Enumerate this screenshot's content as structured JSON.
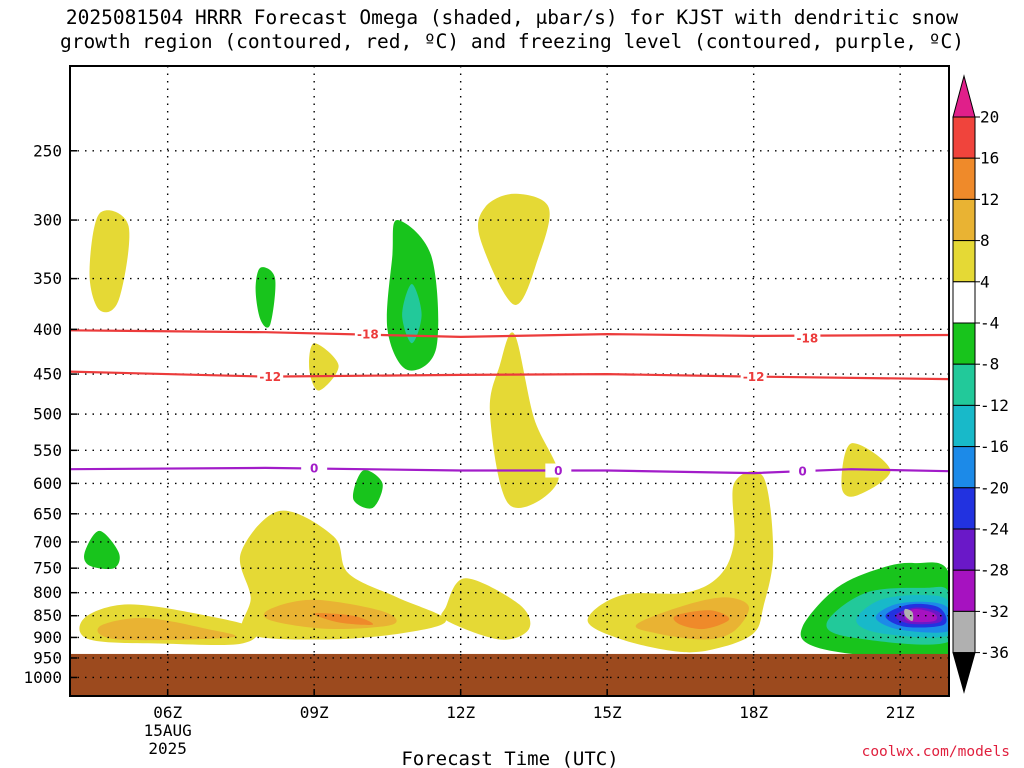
{
  "chart_data": {
    "type": "time-height contour",
    "title_line1": "2025081504 HRRR Forecast Omega (shaded, μbar/s) for KJST with dendritic snow",
    "title_line2": "growth region (contoured, red, ºC) and freezing level (contoured, purple, ºC)",
    "xlabel": "Forecast Time (UTC)",
    "x_ticks": [
      "06Z",
      "09Z",
      "12Z",
      "15Z",
      "18Z",
      "21Z"
    ],
    "x_tick_hours": [
      6,
      9,
      12,
      15,
      18,
      21
    ],
    "x_date_label": [
      "15AUG",
      "2025"
    ],
    "xlim_hours": [
      4,
      22
    ],
    "ylabel": "",
    "y_ticks": [
      250,
      300,
      350,
      400,
      450,
      500,
      550,
      600,
      650,
      700,
      750,
      800,
      850,
      900,
      950,
      1000
    ],
    "ylim_hpa": [
      1050,
      200
    ],
    "y_scale": "log-pressure",
    "ground_pressure_hpa": 940,
    "colorbar_levels": [
      20,
      16,
      12,
      8,
      4,
      -4,
      -8,
      -12,
      -16,
      -20,
      -24,
      -28,
      -32,
      -36
    ],
    "colorbar_colors": [
      "#e01f8a",
      "#f0443c",
      "#ef8a2a",
      "#e9b333",
      "#e5d935",
      "#ffffff",
      "#18c41c",
      "#22c99a",
      "#18b9c9",
      "#1c8ae8",
      "#2232e0",
      "#6a18c8",
      "#a612c0",
      "#b0b0b0",
      "#000000"
    ],
    "contours": [
      {
        "label": "-18",
        "color": "#ec3b3b",
        "points": [
          [
            4,
            401
          ],
          [
            8,
            403
          ],
          [
            12,
            408
          ],
          [
            15,
            405
          ],
          [
            18,
            407
          ],
          [
            22,
            406
          ]
        ]
      },
      {
        "label": "-12",
        "color": "#ec3b3b",
        "points": [
          [
            4,
            447
          ],
          [
            8,
            453
          ],
          [
            12,
            451
          ],
          [
            15,
            450
          ],
          [
            18,
            453
          ],
          [
            22,
            456
          ]
        ]
      },
      {
        "label": "0",
        "color": "#a21cc9",
        "points": [
          [
            4,
            578
          ],
          [
            8,
            576
          ],
          [
            12,
            580
          ],
          [
            15,
            580
          ],
          [
            18,
            584
          ],
          [
            20,
            578
          ],
          [
            22,
            581
          ]
        ]
      }
    ],
    "contour_label_positions": [
      {
        "label": "-18",
        "hour": 10.1,
        "hpa": 405
      },
      {
        "label": "-18",
        "hour": 19.1,
        "hpa": 409
      },
      {
        "label": "-12",
        "hour": 8.1,
        "hpa": 453
      },
      {
        "label": "-12",
        "hour": 18.0,
        "hpa": 453
      },
      {
        "label": "0",
        "hour": 9.0,
        "hpa": 576
      },
      {
        "label": "0",
        "hour": 14.0,
        "hpa": 580
      },
      {
        "label": "0",
        "hour": 19.0,
        "hpa": 581
      }
    ],
    "omega_regions": [
      {
        "level": 4,
        "points": [
          [
            4.6,
            295
          ],
          [
            5.2,
            305
          ],
          [
            5.0,
            370
          ],
          [
            4.6,
            380
          ],
          [
            4.4,
            345
          ]
        ]
      },
      {
        "level": -4,
        "points": [
          [
            7.9,
            340
          ],
          [
            8.2,
            350
          ],
          [
            8.1,
            395
          ],
          [
            7.9,
            390
          ],
          [
            7.8,
            360
          ]
        ]
      },
      {
        "level": -4,
        "points": [
          [
            10.7,
            300
          ],
          [
            11.4,
            330
          ],
          [
            11.5,
            420
          ],
          [
            10.9,
            445
          ],
          [
            10.5,
            400
          ],
          [
            10.6,
            330
          ]
        ]
      },
      {
        "level": -8,
        "points": [
          [
            11.0,
            355
          ],
          [
            11.2,
            385
          ],
          [
            11.0,
            415
          ],
          [
            10.8,
            385
          ]
        ]
      },
      {
        "level": 4,
        "points": [
          [
            13.1,
            280
          ],
          [
            13.8,
            290
          ],
          [
            13.6,
            330
          ],
          [
            13.1,
            375
          ],
          [
            12.4,
            315
          ],
          [
            12.5,
            290
          ]
        ]
      },
      {
        "level": 4,
        "points": [
          [
            9.0,
            415
          ],
          [
            9.5,
            440
          ],
          [
            9.1,
            470
          ],
          [
            8.9,
            445
          ]
        ]
      },
      {
        "level": 4,
        "points": [
          [
            13.1,
            405
          ],
          [
            13.5,
            505
          ],
          [
            14.0,
            595
          ],
          [
            13.0,
            635
          ],
          [
            12.6,
            500
          ],
          [
            12.8,
            440
          ]
        ]
      },
      {
        "level": -4,
        "points": [
          [
            10.0,
            580
          ],
          [
            10.4,
            600
          ],
          [
            10.2,
            640
          ],
          [
            9.8,
            625
          ]
        ]
      },
      {
        "level": 4,
        "points": [
          [
            20.0,
            540
          ],
          [
            20.8,
            580
          ],
          [
            20.1,
            620
          ],
          [
            19.8,
            605
          ]
        ]
      },
      {
        "level": -4,
        "points": [
          [
            4.6,
            680
          ],
          [
            5.0,
            720
          ],
          [
            4.9,
            750
          ],
          [
            4.4,
            745
          ],
          [
            4.3,
            720
          ]
        ]
      },
      {
        "level": 4,
        "points": [
          [
            4.3,
            855
          ],
          [
            5.2,
            825
          ],
          [
            6.8,
            850
          ],
          [
            7.8,
            880
          ],
          [
            7.5,
            915
          ],
          [
            6.0,
            915
          ],
          [
            4.4,
            905
          ]
        ]
      },
      {
        "level": 8,
        "points": [
          [
            4.6,
            875
          ],
          [
            5.5,
            855
          ],
          [
            6.8,
            880
          ],
          [
            7.3,
            900
          ],
          [
            5.0,
            905
          ]
        ]
      },
      {
        "level": 4,
        "points": [
          [
            7.5,
            720
          ],
          [
            8.3,
            645
          ],
          [
            9.4,
            690
          ],
          [
            9.7,
            760
          ],
          [
            10.7,
            810
          ],
          [
            11.7,
            860
          ],
          [
            10.8,
            890
          ],
          [
            9.2,
            905
          ],
          [
            7.6,
            890
          ],
          [
            7.7,
            810
          ]
        ]
      },
      {
        "level": 8,
        "points": [
          [
            8.1,
            835
          ],
          [
            9.0,
            815
          ],
          [
            10.4,
            840
          ],
          [
            10.6,
            870
          ],
          [
            9.3,
            880
          ],
          [
            8.1,
            860
          ]
        ]
      },
      {
        "level": 12,
        "points": [
          [
            9.0,
            845
          ],
          [
            9.8,
            850
          ],
          [
            10.2,
            870
          ],
          [
            9.5,
            865
          ]
        ]
      },
      {
        "level": 4,
        "points": [
          [
            11.7,
            830
          ],
          [
            12.1,
            770
          ],
          [
            13.2,
            825
          ],
          [
            13.4,
            880
          ],
          [
            12.8,
            905
          ],
          [
            11.7,
            860
          ]
        ]
      },
      {
        "level": 4,
        "points": [
          [
            14.6,
            860
          ],
          [
            15.3,
            805
          ],
          [
            16.6,
            800
          ],
          [
            17.3,
            765
          ],
          [
            17.6,
            700
          ],
          [
            17.6,
            600
          ],
          [
            18.2,
            590
          ],
          [
            18.4,
            720
          ],
          [
            18.2,
            830
          ],
          [
            18.0,
            890
          ],
          [
            17.3,
            925
          ],
          [
            16.5,
            935
          ],
          [
            15.3,
            905
          ]
        ]
      },
      {
        "level": 8,
        "points": [
          [
            15.6,
            870
          ],
          [
            16.5,
            830
          ],
          [
            17.4,
            810
          ],
          [
            17.9,
            830
          ],
          [
            17.6,
            885
          ],
          [
            17.0,
            905
          ],
          [
            16.0,
            890
          ]
        ]
      },
      {
        "level": 12,
        "points": [
          [
            16.4,
            850
          ],
          [
            17.1,
            838
          ],
          [
            17.5,
            858
          ],
          [
            17.0,
            880
          ],
          [
            16.5,
            870
          ]
        ]
      },
      {
        "level": -4,
        "points": [
          [
            19.0,
            875
          ],
          [
            19.7,
            790
          ],
          [
            20.6,
            750
          ],
          [
            21.3,
            740
          ],
          [
            22.0,
            760
          ],
          [
            22.0,
            950
          ],
          [
            20.4,
            945
          ],
          [
            19.2,
            920
          ]
        ]
      },
      {
        "level": -8,
        "points": [
          [
            19.5,
            865
          ],
          [
            20.3,
            800
          ],
          [
            21.5,
            790
          ],
          [
            22.0,
            800
          ],
          [
            22.0,
            910
          ],
          [
            20.0,
            900
          ]
        ]
      },
      {
        "level": -12,
        "points": [
          [
            20.1,
            860
          ],
          [
            20.6,
            815
          ],
          [
            21.5,
            805
          ],
          [
            22.0,
            820
          ],
          [
            22.0,
            895
          ],
          [
            20.6,
            890
          ]
        ]
      },
      {
        "level": -16,
        "points": [
          [
            20.5,
            855
          ],
          [
            20.9,
            825
          ],
          [
            21.6,
            820
          ],
          [
            22.0,
            835
          ],
          [
            22.0,
            885
          ],
          [
            21.0,
            882
          ]
        ]
      },
      {
        "level": -20,
        "points": [
          [
            20.7,
            850
          ],
          [
            21.2,
            825
          ],
          [
            21.8,
            832
          ],
          [
            21.9,
            870
          ],
          [
            21.1,
            875
          ]
        ]
      },
      {
        "level": -24,
        "points": [
          [
            20.9,
            850
          ],
          [
            21.3,
            832
          ],
          [
            21.8,
            842
          ],
          [
            21.8,
            865
          ],
          [
            21.2,
            868
          ]
        ]
      },
      {
        "level": -28,
        "points": [
          [
            21.3,
            835
          ],
          [
            21.7,
            845
          ],
          [
            21.7,
            862
          ],
          [
            21.2,
            863
          ],
          [
            21.1,
            850
          ]
        ]
      },
      {
        "level": -32,
        "points": [
          [
            21.1,
            850
          ],
          [
            21.1,
            835
          ],
          [
            21.25,
            842
          ],
          [
            21.25,
            862
          ]
        ]
      }
    ]
  },
  "credit": "coolwx.com/models"
}
